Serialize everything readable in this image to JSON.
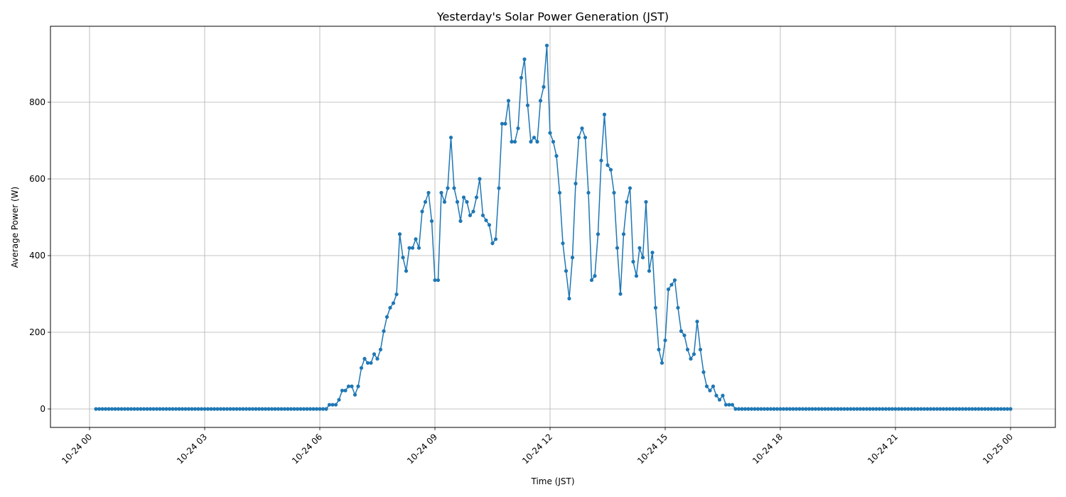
{
  "chart_data": {
    "type": "line",
    "title": "Yesterday's Solar Power Generation (JST)",
    "xlabel": "Time (JST)",
    "ylabel": "Average Power (W)",
    "xlim": [
      "10-23 23:35",
      "10-25 01:05"
    ],
    "ylim": [
      -48,
      990
    ],
    "grid": true,
    "legend": null,
    "line_color": "#1f77b4",
    "marker": "circle",
    "x_interval_minutes": 5,
    "x_ticks": [
      "10-24 00",
      "10-24 03",
      "10-24 06",
      "10-24 09",
      "10-24 12",
      "10-24 15",
      "10-24 18",
      "10-24 21",
      "10-25 00"
    ],
    "y_ticks": [
      0,
      200,
      400,
      600,
      800
    ],
    "series": [
      {
        "name": "Average Power (W)",
        "start": "10-24 00:10",
        "end": "10-25 00:00",
        "nonzero_segment": {
          "start": "10-24 06:15",
          "values": [
            11,
            11,
            11,
            24,
            48,
            48,
            59,
            59,
            37,
            59,
            107,
            131,
            120,
            120,
            143,
            131,
            155,
            203,
            240,
            264,
            276,
            299,
            456,
            395,
            360,
            420,
            420,
            443,
            420,
            515,
            540,
            564,
            490,
            336,
            336,
            564,
            540,
            576,
            708,
            576,
            540,
            490,
            552,
            540,
            505,
            515,
            552,
            600,
            505,
            492,
            480,
            432,
            443,
            576,
            744,
            744,
            804,
            697,
            697,
            732,
            864,
            912,
            792,
            697,
            708,
            697,
            804,
            840,
            948,
            720,
            697,
            660,
            564,
            432,
            360,
            288,
            395,
            588,
            708,
            732,
            708,
            564,
            336,
            347,
            456,
            648,
            768,
            636,
            624,
            564,
            420,
            300,
            456,
            540,
            576,
            384,
            347,
            420,
            395,
            540,
            360,
            408,
            264,
            155,
            120,
            179,
            312,
            324,
            336,
            264,
            203,
            192,
            155,
            131,
            143,
            228,
            155,
            96,
            59,
            48,
            59,
            35,
            24,
            35,
            11,
            11,
            11
          ]
        },
        "zero_elsewhere": true
      }
    ]
  }
}
